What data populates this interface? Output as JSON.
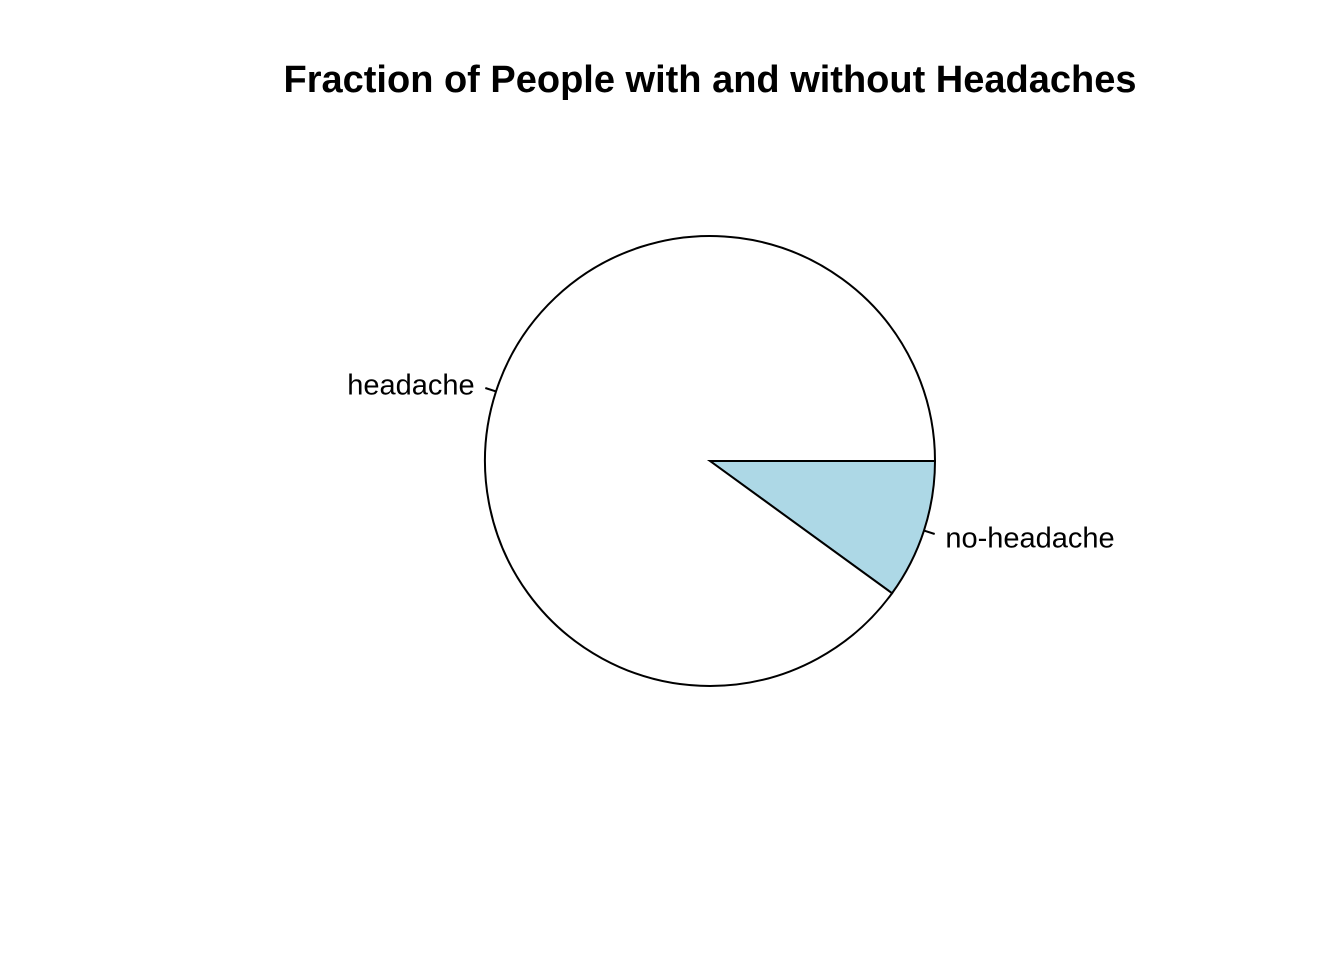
{
  "chart_data": {
    "type": "pie",
    "title": "Fraction of People with and without Headaches",
    "slices": [
      {
        "label": "no-headache",
        "value": 0.1,
        "color": "#add8e6"
      },
      {
        "label": "headache",
        "value": 0.9,
        "color": "#ffffff"
      }
    ],
    "start": "3 o'clock",
    "direction": "clockwise",
    "legend": "none"
  }
}
